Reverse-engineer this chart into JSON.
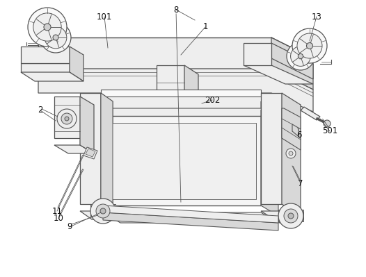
{
  "background_color": "#ffffff",
  "lc": "#555555",
  "fill_white": "#f9f9f9",
  "fill_light": "#eeeeee",
  "fill_mid": "#d8d8d8",
  "fill_dark": "#bbbbbb",
  "figsize": [
    5.26,
    3.99
  ],
  "dpi": 100
}
